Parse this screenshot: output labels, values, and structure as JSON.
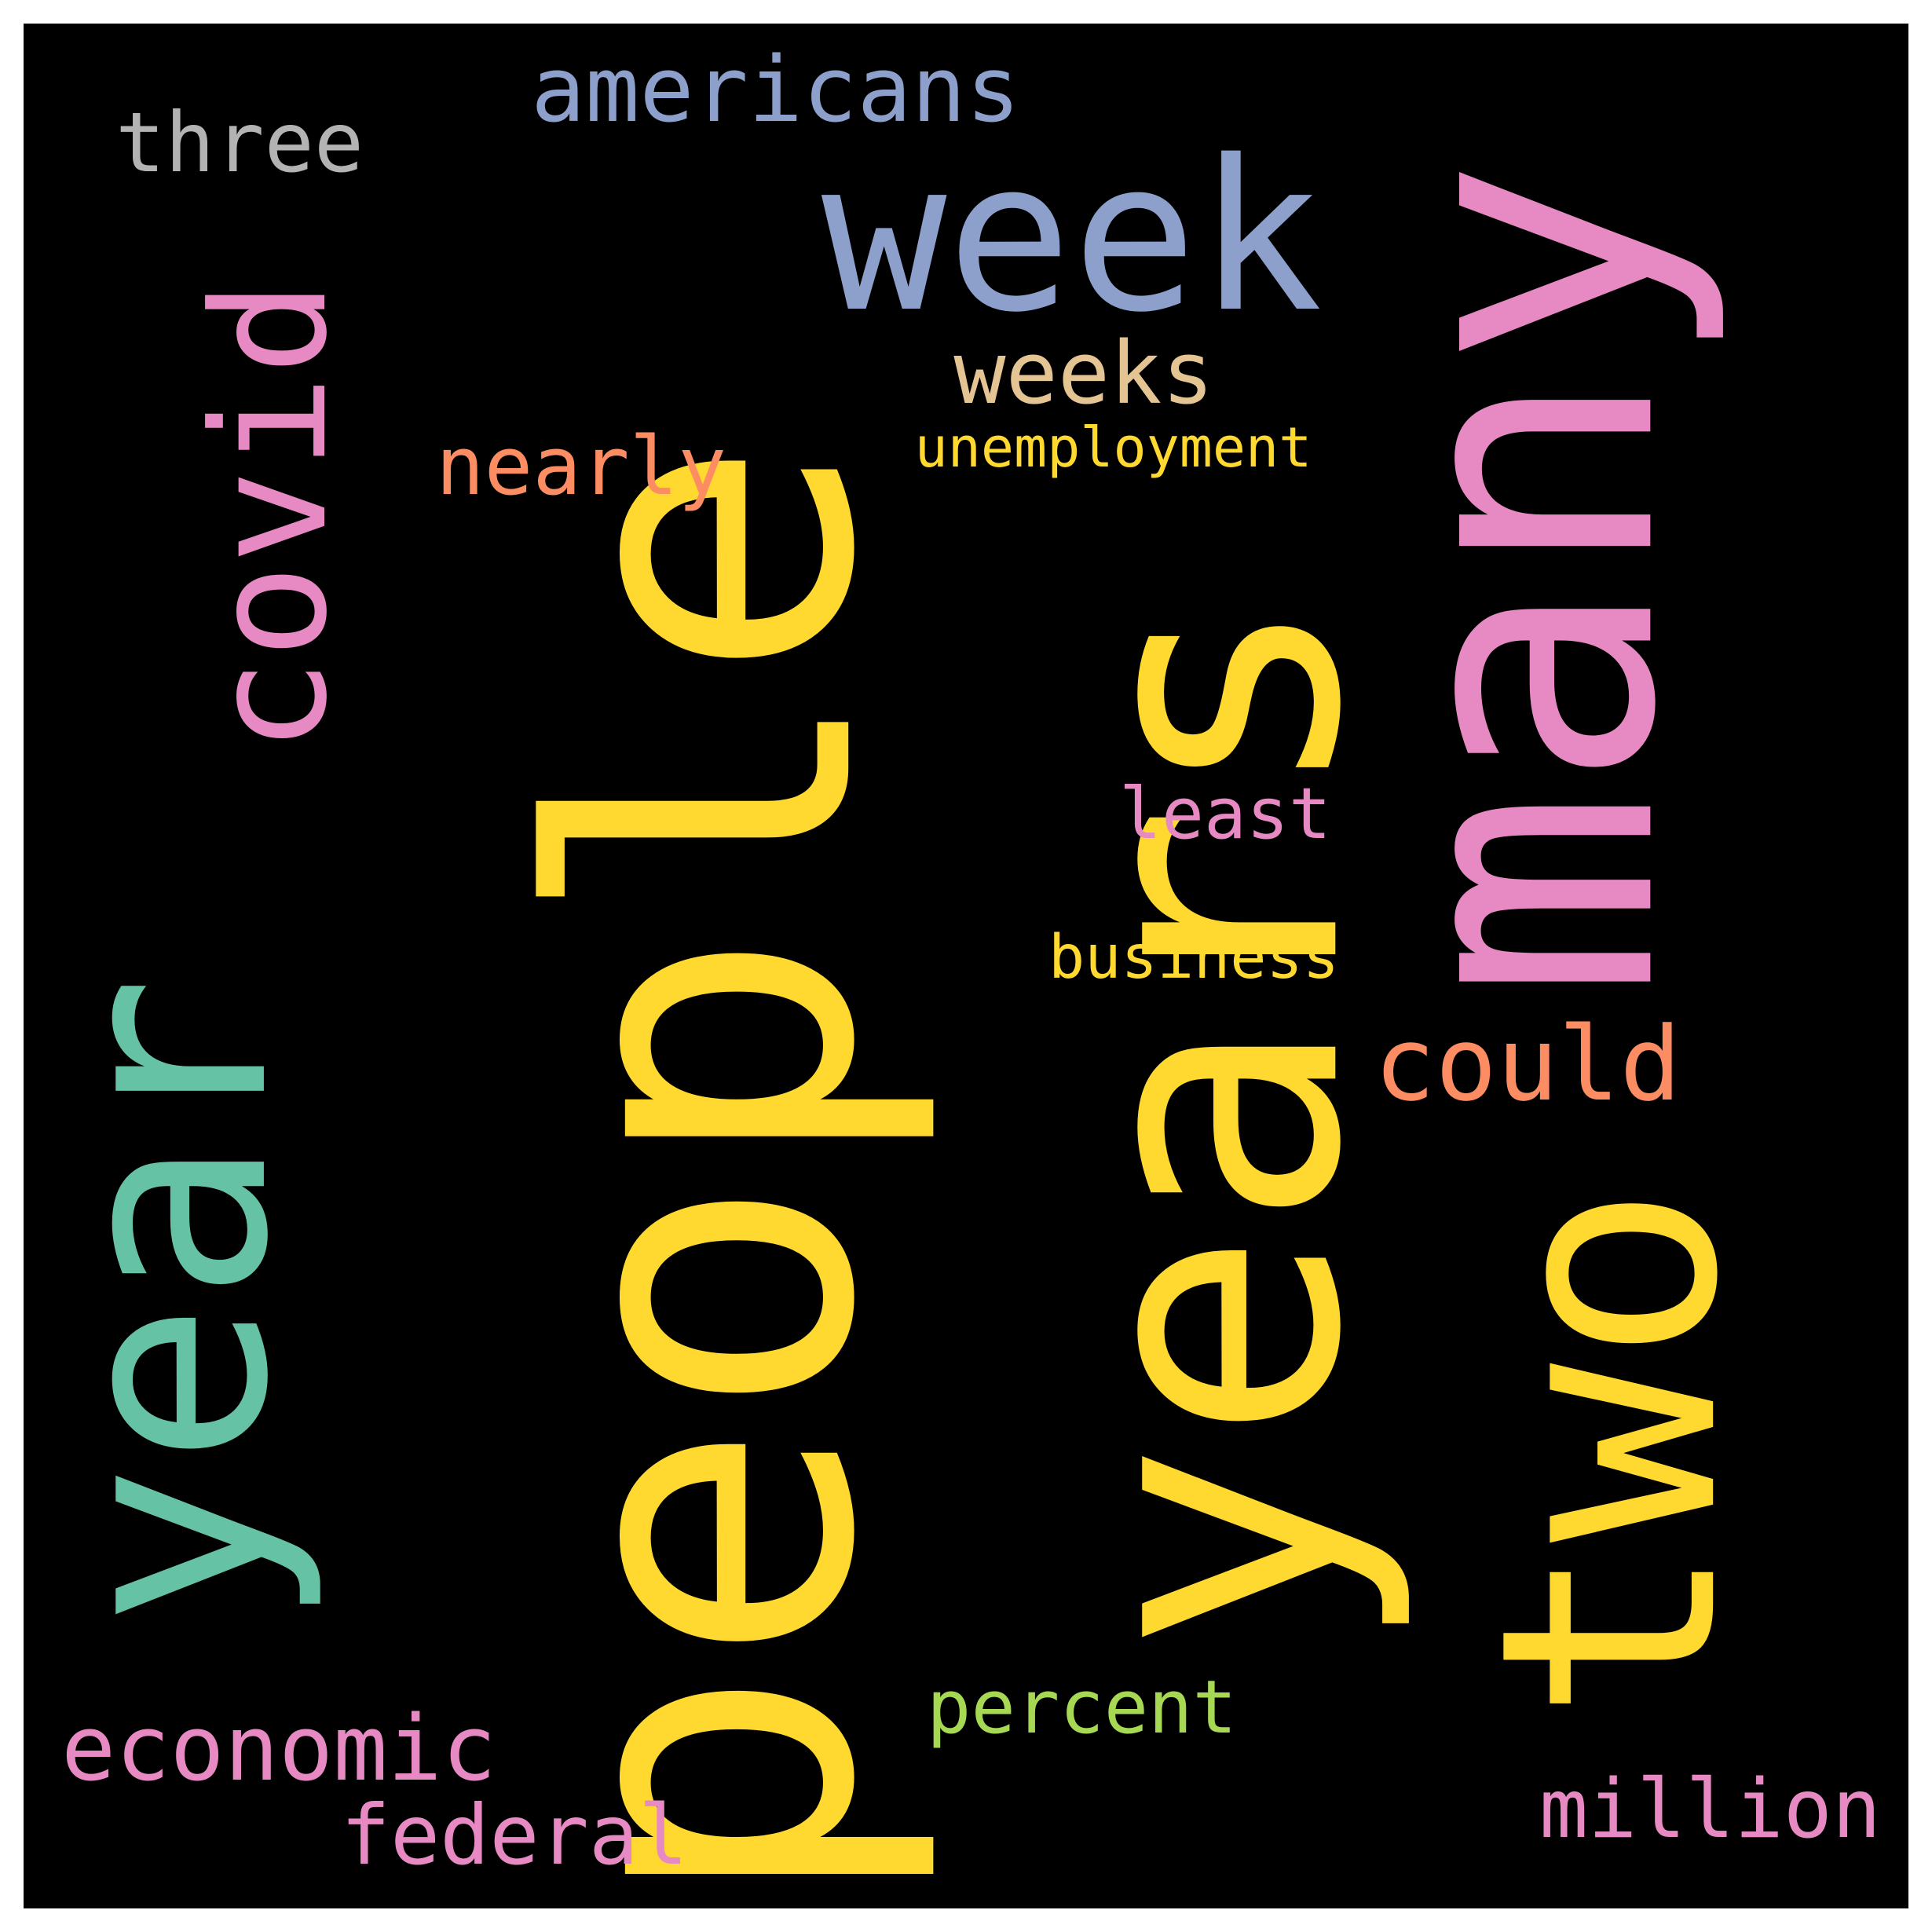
{
  "canvas": {
    "background": "#000000",
    "page_background": "#ffffff"
  },
  "words": [
    {
      "id": "people",
      "text": "people",
      "color": "#ffd92f",
      "vertical": true
    },
    {
      "id": "years",
      "text": "years",
      "color": "#ffd92f",
      "vertical": true
    },
    {
      "id": "year",
      "text": "year",
      "color": "#66c2a5",
      "vertical": true
    },
    {
      "id": "many",
      "text": "many",
      "color": "#e78ac3",
      "vertical": true
    },
    {
      "id": "two",
      "text": "two",
      "color": "#ffd92f",
      "vertical": true
    },
    {
      "id": "week",
      "text": "week",
      "color": "#8da0cb",
      "vertical": false
    },
    {
      "id": "covid",
      "text": "covid",
      "color": "#e78ac3",
      "vertical": true
    },
    {
      "id": "americans",
      "text": "americans",
      "color": "#8da0cb",
      "vertical": false
    },
    {
      "id": "three",
      "text": "three",
      "color": "#b3b3b3",
      "vertical": false
    },
    {
      "id": "weeks",
      "text": "weeks",
      "color": "#e5c494",
      "vertical": false
    },
    {
      "id": "nearly",
      "text": "nearly",
      "color": "#fc8d62",
      "vertical": false
    },
    {
      "id": "unemployment",
      "text": "unemployment",
      "color": "#ffd92f",
      "vertical": false
    },
    {
      "id": "least",
      "text": "least",
      "color": "#e78ac3",
      "vertical": false
    },
    {
      "id": "business",
      "text": "business",
      "color": "#ffd92f",
      "vertical": false
    },
    {
      "id": "could",
      "text": "could",
      "color": "#fc8d62",
      "vertical": false
    },
    {
      "id": "percent",
      "text": "percent",
      "color": "#a6d854",
      "vertical": false
    },
    {
      "id": "economic",
      "text": "economic",
      "color": "#e78ac3",
      "vertical": false
    },
    {
      "id": "federal",
      "text": "federal",
      "color": "#e78ac3",
      "vertical": false
    },
    {
      "id": "million",
      "text": "million",
      "color": "#e78ac3",
      "vertical": false
    }
  ]
}
